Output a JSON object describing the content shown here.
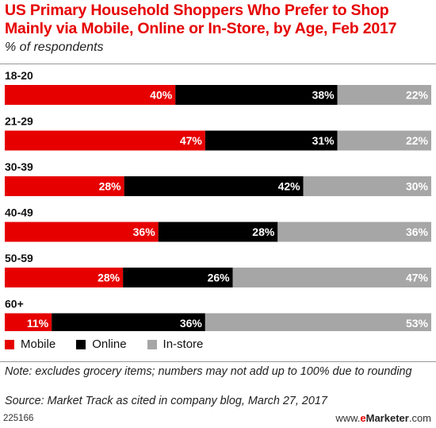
{
  "header": {
    "title": "US Primary Household Shoppers Who Prefer to Shop Mainly via Mobile, Online or In-Store, by Age, Feb 2017",
    "subtitle": "% of respondents"
  },
  "colors": {
    "mobile": "#e60000",
    "online": "#000000",
    "instore": "#a6a6a6",
    "title": "#e60000"
  },
  "chart_data": {
    "type": "bar",
    "stacked": true,
    "orientation": "horizontal",
    "categories": [
      "18-20",
      "21-29",
      "30-39",
      "40-49",
      "50-59",
      "60+"
    ],
    "series": [
      {
        "name": "Mobile",
        "values": [
          40,
          47,
          28,
          36,
          28,
          11
        ]
      },
      {
        "name": "Online",
        "values": [
          38,
          31,
          42,
          28,
          26,
          36
        ]
      },
      {
        "name": "In-store",
        "values": [
          22,
          22,
          30,
          36,
          47,
          53
        ]
      }
    ],
    "value_suffix": "%",
    "legend_position": "bottom-left"
  },
  "legend": {
    "mobile": "Mobile",
    "online": "Online",
    "instore": "In-store"
  },
  "footer": {
    "note": "Note: excludes grocery items; numbers may not add up to 100% due to rounding",
    "source": "Source: Market Track as cited in company blog, March 27, 2017",
    "id": "225166",
    "brand_prefix": "www.",
    "brand_e": "e",
    "brand_marketer": "Marketer",
    "brand_suffix": ".com"
  }
}
